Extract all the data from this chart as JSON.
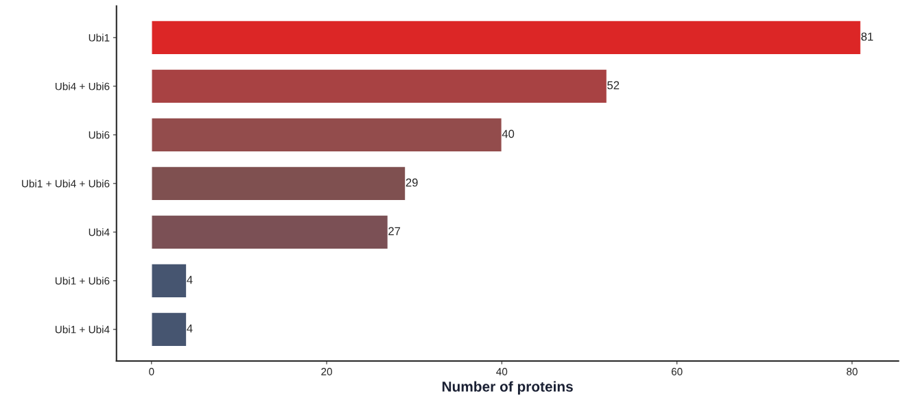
{
  "chart_data": {
    "type": "bar",
    "orientation": "horizontal",
    "xlabel": "Number of proteins",
    "categories": [
      "Ubi1",
      "Ubi4 + Ubi6",
      "Ubi6",
      "Ubi1 + Ubi4 + Ubi6",
      "Ubi4",
      "Ubi1 + Ubi6",
      "Ubi1 + Ubi4"
    ],
    "values": [
      81,
      52,
      40,
      29,
      27,
      4,
      4
    ],
    "colors": [
      "#dc2626",
      "#a84243",
      "#934c4c",
      "#7f5050",
      "#7b5055",
      "#465570",
      "#465570"
    ],
    "xlim": [
      -4,
      85.3
    ],
    "xticks": [
      0,
      20,
      40,
      60,
      80
    ],
    "data_labels": true,
    "grid": false,
    "legend": false
  }
}
